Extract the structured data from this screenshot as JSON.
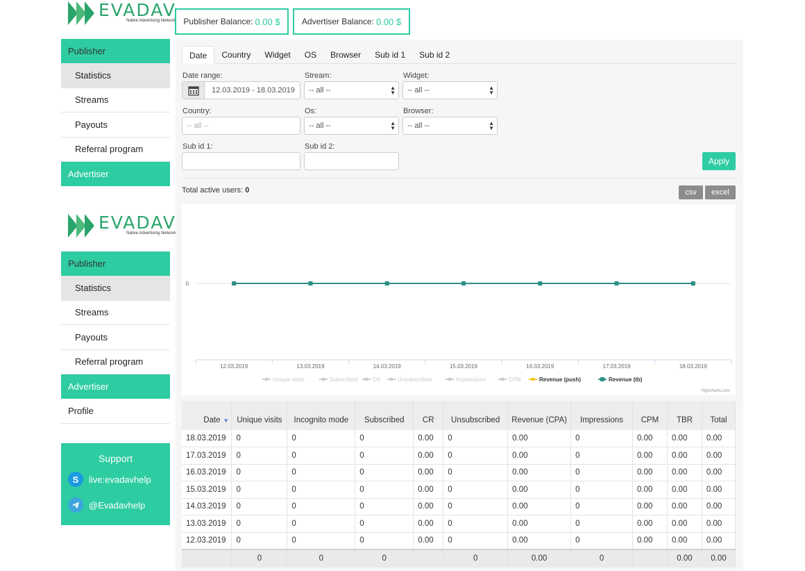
{
  "logo": {
    "brand": "EVADAV",
    "tagline": "Native Advertising Network"
  },
  "balances": {
    "publisher": {
      "label": "Publisher Balance:",
      "value": "0.00 $"
    },
    "advertiser": {
      "label": "Advertiser Balance:",
      "value": "0.00 $"
    }
  },
  "sidebar": {
    "publisher_label": "Publisher",
    "items": [
      {
        "label": "Statistics"
      },
      {
        "label": "Streams"
      },
      {
        "label": "Payouts"
      },
      {
        "label": "Referral program"
      }
    ],
    "advertiser_label": "Advertiser",
    "profile_label": "Profile"
  },
  "support": {
    "title": "Support",
    "skype": "live:evadavhelp",
    "telegram": "@Evadavhelp"
  },
  "tabs": [
    "Date",
    "Country",
    "Widget",
    "OS",
    "Browser",
    "Sub id 1",
    "Sub id 2"
  ],
  "filters": {
    "date_range": {
      "label": "Date range:",
      "value": "12.03.2019 - 18.03.2019"
    },
    "stream": {
      "label": "Stream:",
      "value": "-- all --"
    },
    "widget": {
      "label": "Widget:",
      "value": "-- all --"
    },
    "country": {
      "label": "Country:",
      "placeholder": "-- all --"
    },
    "os": {
      "label": "Os:",
      "value": "-- all --"
    },
    "browser": {
      "label": "Browser:",
      "value": "-- all --"
    },
    "subid1": {
      "label": "Sub id 1:",
      "value": ""
    },
    "subid2": {
      "label": "Sub id 2:",
      "value": ""
    },
    "apply_label": "Apply"
  },
  "total_users": {
    "label": "Total active users:",
    "value": "0"
  },
  "export": {
    "csv": "csv",
    "excel": "excel"
  },
  "chart_data": {
    "type": "line",
    "x": [
      "12.03.2019",
      "13.03.2019",
      "14.03.2019",
      "15.03.2019",
      "16.03.2019",
      "17.03.2019",
      "18.03.2019"
    ],
    "y_ticks": [
      "0"
    ],
    "series": [
      {
        "name": "Unique visits",
        "values": [
          0,
          0,
          0,
          0,
          0,
          0,
          0
        ],
        "visible": false
      },
      {
        "name": "Subscribed",
        "values": [
          0,
          0,
          0,
          0,
          0,
          0,
          0
        ],
        "visible": false
      },
      {
        "name": "CR",
        "values": [
          0,
          0,
          0,
          0,
          0,
          0,
          0
        ],
        "visible": false
      },
      {
        "name": "Unsubscribed",
        "values": [
          0,
          0,
          0,
          0,
          0,
          0,
          0
        ],
        "visible": false
      },
      {
        "name": "Impressions",
        "values": [
          0,
          0,
          0,
          0,
          0,
          0,
          0
        ],
        "visible": false
      },
      {
        "name": "CPM",
        "values": [
          0,
          0,
          0,
          0,
          0,
          0,
          0
        ],
        "visible": false
      },
      {
        "name": "Revenue (push)",
        "values": [
          0,
          0,
          0,
          0,
          0,
          0,
          0
        ],
        "visible": true,
        "color": "#f0c419"
      },
      {
        "name": "Revenue (tb)",
        "values": [
          0,
          0,
          0,
          0,
          0,
          0,
          0
        ],
        "visible": true,
        "color": "#2a8f86"
      }
    ],
    "legend": "bottom",
    "credit": "Highcharts.com"
  },
  "table": {
    "headers": [
      "Date",
      "Unique visits",
      "Incognito mode",
      "Subscribed",
      "CR",
      "Unsubscribed",
      "Revenue (CPA)",
      "Impressions",
      "CPM",
      "TBR",
      "Total"
    ],
    "rows": [
      [
        "18.03.2019",
        "0",
        "0",
        "0",
        "0.00",
        "0",
        "0.00",
        "0",
        "0.00",
        "0.00",
        "0.00"
      ],
      [
        "17.03.2019",
        "0",
        "0",
        "0",
        "0.00",
        "0",
        "0.00",
        "0",
        "0.00",
        "0.00",
        "0.00"
      ],
      [
        "16.03.2019",
        "0",
        "0",
        "0",
        "0.00",
        "0",
        "0.00",
        "0",
        "0.00",
        "0.00",
        "0.00"
      ],
      [
        "15.03.2019",
        "0",
        "0",
        "0",
        "0.00",
        "0",
        "0.00",
        "0",
        "0.00",
        "0.00",
        "0.00"
      ],
      [
        "14.03.2019",
        "0",
        "0",
        "0",
        "0.00",
        "0",
        "0.00",
        "0",
        "0.00",
        "0.00",
        "0.00"
      ],
      [
        "13.03.2019",
        "0",
        "0",
        "0",
        "0.00",
        "0",
        "0.00",
        "0",
        "0.00",
        "0.00",
        "0.00"
      ],
      [
        "12.03.2019",
        "0",
        "0",
        "0",
        "0.00",
        "0",
        "0.00",
        "0",
        "0.00",
        "0.00",
        "0.00"
      ]
    ],
    "footer": [
      "",
      "0",
      "0",
      "0",
      "",
      "0",
      "0.00",
      "0",
      "",
      "0.00",
      "0.00"
    ]
  },
  "colors": {
    "accent": "#2ecca2",
    "brand_green": "#2aa56b"
  }
}
